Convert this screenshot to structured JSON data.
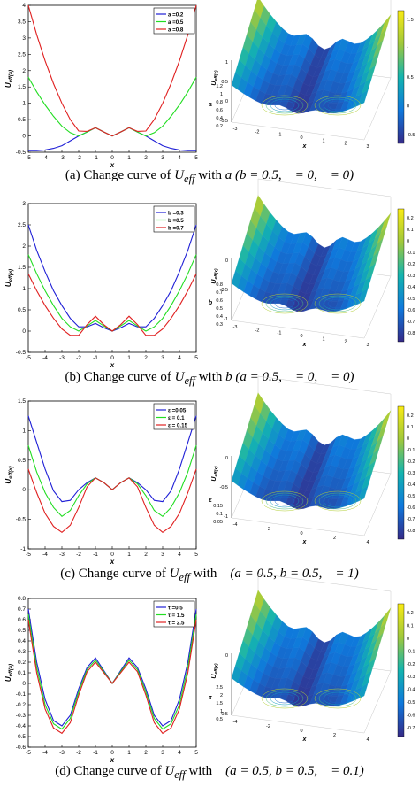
{
  "colors": {
    "series": [
      "#1f1fd6",
      "#22dd22",
      "#e02020"
    ],
    "surface_low": "#3b2ab0",
    "surface_high": "#f7e62a"
  },
  "panels": [
    {
      "id": "a",
      "caption": {
        "label": "(a) Change curve of",
        "sym": "U",
        "sub": "eff",
        "with": "with",
        "tail": "a (b = 0.5,    = 0,    = 0)"
      },
      "chart_data": {
        "type": "line",
        "xlabel": "x",
        "ylabel": "U_eff(x)",
        "xlim": [
          -5,
          5
        ],
        "ylim": [
          -0.5,
          4
        ],
        "xticks": [
          "-5",
          "-4",
          "-3",
          "-2",
          "-1",
          "0",
          "1",
          "2",
          "3",
          "4",
          "5"
        ],
        "yticks": [
          "-0.5",
          "0",
          "0.5",
          "1",
          "1.5",
          "2",
          "2.5",
          "3",
          "3.5",
          "4"
        ],
        "legend_position": "top-right",
        "legend": [
          "a =0.2",
          "a =0.5",
          "a =0.8"
        ],
        "x": [
          -5,
          -4.5,
          -4,
          -3.5,
          -3,
          -2.5,
          -2,
          -1.5,
          -1,
          -0.5,
          0,
          0.5,
          1,
          1.5,
          2,
          2.5,
          3,
          3.5,
          4,
          4.5,
          5
        ],
        "series": [
          {
            "name": "a =0.2",
            "values": [
              -0.45,
              -0.45,
              -0.43,
              -0.38,
              -0.3,
              -0.15,
              0,
              0.12,
              0.25,
              0.12,
              0,
              0.12,
              0.25,
              0.12,
              0,
              -0.15,
              -0.3,
              -0.38,
              -0.43,
              -0.45,
              -0.45
            ]
          },
          {
            "name": "a =0.5",
            "values": [
              1.8,
              1.35,
              0.95,
              0.6,
              0.3,
              0.1,
              0,
              0.12,
              0.25,
              0.12,
              0,
              0.12,
              0.25,
              0.12,
              0,
              0.1,
              0.3,
              0.6,
              0.95,
              1.35,
              1.8
            ]
          },
          {
            "name": "a =0.8",
            "values": [
              4.0,
              3.1,
              2.3,
              1.6,
              1.0,
              0.5,
              0.15,
              0.14,
              0.25,
              0.12,
              0,
              0.12,
              0.25,
              0.14,
              0.15,
              0.5,
              1.0,
              1.6,
              2.3,
              3.1,
              4.0
            ]
          }
        ]
      },
      "surface": {
        "zticks": [
          "1",
          "0.5",
          "0",
          "-0.5"
        ],
        "xticks": [
          "-3",
          "-2",
          "-1",
          "0",
          "1",
          "2",
          "3"
        ],
        "yticks": [
          "0.2",
          "0.4",
          "0.6",
          "0.8",
          "1",
          "1.2"
        ],
        "xlabel": "x",
        "ylabel": "a",
        "zlabel": "U_eff(x)",
        "colorbar_ticks": [
          "1.5",
          "1",
          "0.5",
          "0",
          "-0.5"
        ]
      }
    },
    {
      "id": "b",
      "caption": {
        "label": "(b) Change curve of",
        "sym": "U",
        "sub": "eff",
        "with": "with",
        "tail": "b (a = 0.5,    = 0,    = 0)"
      },
      "chart_data": {
        "type": "line",
        "xlabel": "x",
        "ylabel": "U_eff(x)",
        "xlim": [
          -5,
          5
        ],
        "ylim": [
          -0.5,
          3
        ],
        "xticks": [
          "-5",
          "-4",
          "-3",
          "-2",
          "-1",
          "0",
          "1",
          "2",
          "3",
          "4",
          "5"
        ],
        "yticks": [
          "-0.5",
          "0",
          "0.5",
          "1",
          "1.5",
          "2",
          "2.5",
          "3"
        ],
        "legend_position": "top-right",
        "legend": [
          "b =0.3",
          "b =0.5",
          "b =0.7"
        ],
        "x": [
          -5,
          -4.5,
          -4,
          -3.5,
          -3,
          -2.5,
          -2,
          -1.5,
          -1,
          -0.5,
          0,
          0.5,
          1,
          1.5,
          2,
          2.5,
          3,
          3.5,
          4,
          4.5,
          5
        ],
        "series": [
          {
            "name": "b =0.3",
            "values": [
              2.5,
              1.9,
              1.4,
              0.95,
              0.6,
              0.3,
              0.1,
              0.1,
              0.18,
              0.08,
              0,
              0.08,
              0.18,
              0.1,
              0.1,
              0.3,
              0.6,
              0.95,
              1.4,
              1.9,
              2.5
            ]
          },
          {
            "name": "b =0.5",
            "values": [
              1.8,
              1.35,
              0.95,
              0.6,
              0.3,
              0.1,
              0,
              0.12,
              0.25,
              0.12,
              0,
              0.12,
              0.25,
              0.12,
              0,
              0.1,
              0.3,
              0.6,
              0.95,
              1.35,
              1.8
            ]
          },
          {
            "name": "b =0.7",
            "values": [
              1.35,
              0.95,
              0.6,
              0.3,
              0.05,
              -0.1,
              -0.1,
              0.15,
              0.35,
              0.15,
              0,
              0.15,
              0.35,
              0.15,
              -0.1,
              -0.1,
              0.05,
              0.3,
              0.6,
              0.95,
              1.35
            ]
          }
        ]
      },
      "surface": {
        "zticks": [
          "0",
          "-0.5",
          "-1"
        ],
        "xticks": [
          "-3",
          "-2",
          "-1",
          "0",
          "1",
          "2",
          "3"
        ],
        "yticks": [
          "0.3",
          "0.4",
          "0.5",
          "0.6",
          "0.7",
          "0.8"
        ],
        "xlabel": "x",
        "ylabel": "b",
        "zlabel": "U_eff(x)",
        "colorbar_ticks": [
          "0.2",
          "0.1",
          "0",
          "-0.1",
          "-0.2",
          "-0.3",
          "-0.4",
          "-0.5",
          "-0.6",
          "-0.7",
          "-0.8"
        ]
      }
    },
    {
      "id": "c",
      "caption": {
        "label": "(c) Change curve of",
        "sym": "U",
        "sub": "eff",
        "with": "with",
        "tail": "   (a = 0.5, b = 0.5,    = 1)"
      },
      "chart_data": {
        "type": "line",
        "xlabel": "x",
        "ylabel": "U_eff(x)",
        "xlim": [
          -5,
          5
        ],
        "ylim": [
          -1,
          1.5
        ],
        "xticks": [
          "-5",
          "-4",
          "-3",
          "-2",
          "-1",
          "0",
          "1",
          "2",
          "3",
          "4",
          "5"
        ],
        "yticks": [
          "-1",
          "-0.5",
          "0",
          "0.5",
          "1",
          "1.5"
        ],
        "legend_position": "top-right",
        "legend": [
          "ε =0.05",
          "ε = 0.1",
          "ε = 0.15"
        ],
        "x": [
          -5,
          -4.5,
          -4,
          -3.5,
          -3,
          -2.5,
          -2,
          -1.5,
          -1,
          -0.5,
          0,
          0.5,
          1,
          1.5,
          2,
          2.5,
          3,
          3.5,
          4,
          4.5,
          5
        ],
        "series": [
          {
            "name": "ε =0.05",
            "values": [
              1.25,
              0.8,
              0.35,
              -0.02,
              -0.2,
              -0.18,
              0,
              0.12,
              0.2,
              0.12,
              0,
              0.12,
              0.2,
              0.12,
              0,
              -0.18,
              -0.2,
              -0.02,
              0.35,
              0.8,
              1.25
            ]
          },
          {
            "name": "ε = 0.1",
            "values": [
              0.75,
              0.3,
              -0.05,
              -0.3,
              -0.45,
              -0.35,
              -0.1,
              0.1,
              0.2,
              0.12,
              0,
              0.12,
              0.2,
              0.1,
              -0.1,
              -0.35,
              -0.45,
              -0.3,
              -0.05,
              0.3,
              0.75
            ]
          },
          {
            "name": "ε = 0.15",
            "values": [
              0.35,
              -0.05,
              -0.4,
              -0.62,
              -0.72,
              -0.6,
              -0.3,
              0.05,
              0.2,
              0.12,
              0,
              0.12,
              0.2,
              0.05,
              -0.3,
              -0.6,
              -0.72,
              -0.62,
              -0.4,
              -0.05,
              0.35
            ]
          }
        ]
      },
      "surface": {
        "zticks": [
          "0",
          "-0.5",
          "-1"
        ],
        "xticks": [
          "-4",
          "-2",
          "0",
          "2",
          "4"
        ],
        "yticks": [
          "0.05",
          "0.1",
          "0.15"
        ],
        "xlabel": "x",
        "ylabel": "ε",
        "zlabel": "U_eff(x)",
        "colorbar_ticks": [
          "0.2",
          "0.1",
          "0",
          "-0.1",
          "-0.2",
          "-0.3",
          "-0.4",
          "-0.5",
          "-0.6",
          "-0.7",
          "-0.8"
        ]
      }
    },
    {
      "id": "d",
      "caption": {
        "label": "(d) Change curve of",
        "sym": "U",
        "sub": "eff",
        "with": "with",
        "tail": "   (a = 0.5, b = 0.5,    = 0.1)"
      },
      "chart_data": {
        "type": "line",
        "xlabel": "x",
        "ylabel": "U_eff(x)",
        "xlim": [
          -5,
          5
        ],
        "ylim": [
          -0.6,
          0.8
        ],
        "xticks": [
          "-5",
          "-4",
          "-3",
          "-2",
          "-1",
          "0",
          "1",
          "2",
          "3",
          "4",
          "5"
        ],
        "yticks": [
          "-0.6",
          "-0.5",
          "-0.4",
          "-0.3",
          "-0.2",
          "-0.1",
          "0",
          "0.1",
          "0.2",
          "0.3",
          "0.4",
          "0.5",
          "0.6",
          "0.7",
          "0.8"
        ],
        "legend_position": "top-right",
        "legend": [
          "τ =0.5",
          "τ = 1.5",
          "τ = 2.5"
        ],
        "x": [
          -5,
          -4.5,
          -4,
          -3.5,
          -3,
          -2.5,
          -2,
          -1.5,
          -1,
          -0.5,
          0,
          0.5,
          1,
          1.5,
          2,
          2.5,
          3,
          3.5,
          4,
          4.5,
          5
        ],
        "series": [
          {
            "name": "τ =0.5",
            "values": [
              0.7,
              0.2,
              -0.15,
              -0.35,
              -0.4,
              -0.3,
              -0.05,
              0.15,
              0.24,
              0.12,
              0,
              0.12,
              0.24,
              0.15,
              -0.05,
              -0.3,
              -0.4,
              -0.35,
              -0.15,
              0.2,
              0.7
            ]
          },
          {
            "name": "τ = 1.5",
            "values": [
              0.65,
              0.15,
              -0.2,
              -0.38,
              -0.43,
              -0.33,
              -0.08,
              0.13,
              0.22,
              0.11,
              0,
              0.11,
              0.22,
              0.13,
              -0.08,
              -0.33,
              -0.43,
              -0.38,
              -0.2,
              0.15,
              0.65
            ]
          },
          {
            "name": "τ = 2.5",
            "values": [
              0.6,
              0.1,
              -0.24,
              -0.42,
              -0.47,
              -0.37,
              -0.11,
              0.11,
              0.2,
              0.1,
              0,
              0.1,
              0.2,
              0.11,
              -0.11,
              -0.37,
              -0.47,
              -0.42,
              -0.24,
              0.1,
              0.6
            ]
          }
        ]
      },
      "surface": {
        "zticks": [
          "0",
          "-0.5"
        ],
        "xticks": [
          "-4",
          "-2",
          "0",
          "2",
          "4"
        ],
        "yticks": [
          "0.5",
          "1",
          "1.5",
          "2",
          "2.5"
        ],
        "xlabel": "x",
        "ylabel": "τ",
        "zlabel": "U_eff(x)",
        "colorbar_ticks": [
          "0.2",
          "0.1",
          "0",
          "-0.1",
          "-0.2",
          "-0.3",
          "-0.4",
          "-0.5",
          "-0.6",
          "-0.7"
        ]
      }
    }
  ]
}
